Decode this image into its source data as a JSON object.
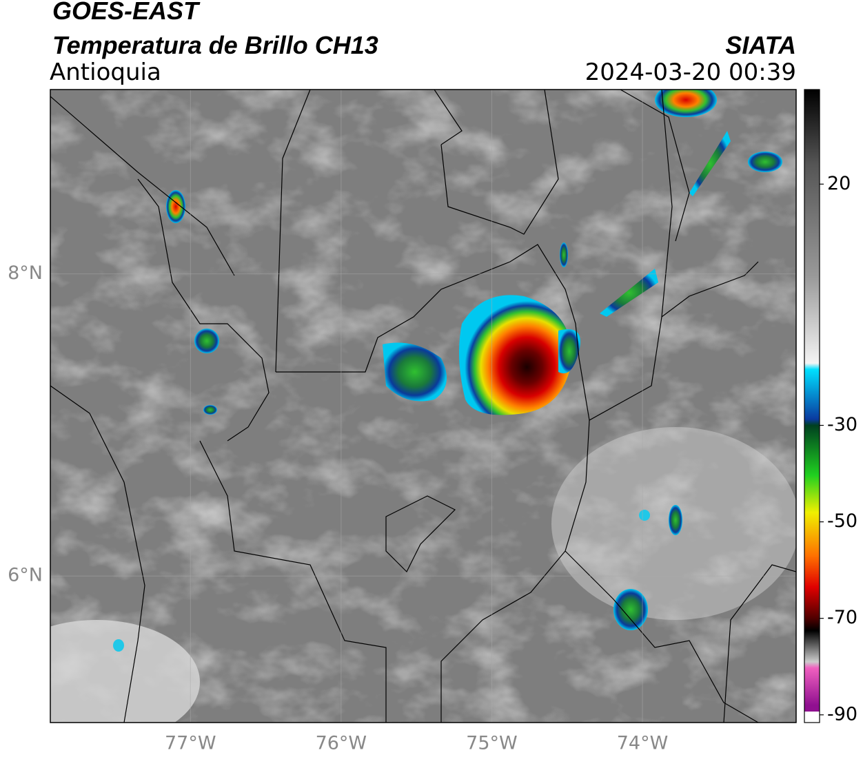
{
  "header": {
    "title": "GOES-EAST",
    "subtitle": "Temperatura de Brillo CH13",
    "region": "Antioquia",
    "source": "SIATA",
    "datetime": "2024-03-20 00:39"
  },
  "map": {
    "xlim": [
      -77.93,
      -72.98
    ],
    "ylim": [
      5.03,
      9.22
    ],
    "xticks": [
      {
        "value": -77,
        "label": "77°W"
      },
      {
        "value": -76,
        "label": "76°W"
      },
      {
        "value": -75,
        "label": "75°W"
      },
      {
        "value": -74,
        "label": "74°W"
      }
    ],
    "yticks": [
      {
        "value": 8,
        "label": "8°N"
      },
      {
        "value": 6,
        "label": "6°N"
      }
    ],
    "grid": true
  },
  "colorbar": {
    "lim": [
      -91.6,
      39.6
    ],
    "ticks": [
      20,
      -30,
      -50,
      -70,
      -90
    ]
  }
}
